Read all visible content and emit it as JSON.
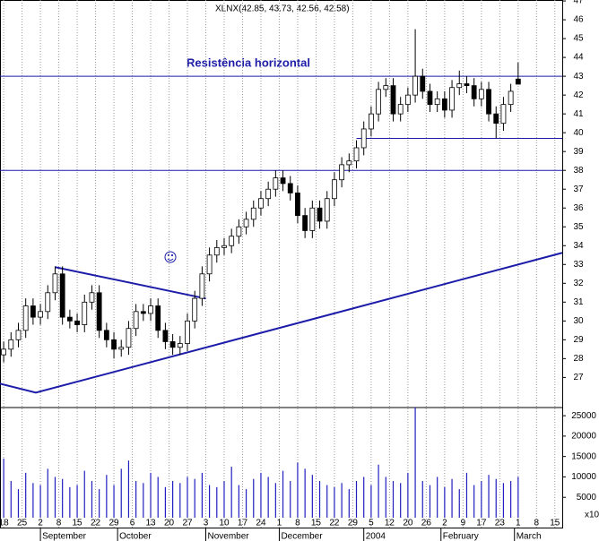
{
  "chart_data": {
    "type": "candlestick",
    "title": "XLNX(42.85, 43.73, 42.56, 42.58)",
    "annotation": "Resistência horizontal",
    "color_up": "#ffffff",
    "color_down": "#000000",
    "volume_color": "#2020c0",
    "line_color": "#1c1ca8",
    "x": [
      0,
      2,
      4,
      6,
      8,
      10,
      12,
      14,
      16,
      18,
      20,
      22,
      24,
      26,
      28,
      30,
      32,
      34,
      36,
      38,
      40,
      42,
      44,
      46,
      48,
      50,
      52,
      54,
      56,
      58,
      60,
      62,
      64,
      66,
      68,
      70,
      72,
      74,
      76,
      78,
      80,
      82,
      84,
      86,
      88,
      90,
      92,
      94,
      96,
      98,
      100,
      102,
      104,
      106,
      108,
      110,
      112,
      114,
      116,
      118,
      120,
      122,
      124,
      126,
      128,
      130,
      132,
      134,
      136,
      138,
      140
    ],
    "open": [
      28.2,
      28.5,
      29.0,
      29.5,
      30.8,
      30.2,
      30.5,
      31.5,
      32.5,
      30.2,
      30.0,
      29.8,
      31.0,
      31.5,
      29.5,
      29.0,
      28.5,
      28.6,
      29.6,
      30.5,
      30.4,
      30.8,
      29.5,
      28.9,
      28.6,
      28.8,
      30.0,
      31.2,
      32.5,
      33.5,
      33.9,
      34.0,
      34.5,
      35.0,
      35.4,
      36.0,
      36.5,
      37.0,
      37.6,
      37.3,
      36.8,
      35.6,
      34.8,
      36.0,
      35.3,
      36.5,
      37.5,
      38.3,
      38.5,
      39.2,
      40.2,
      41.0,
      42.3,
      42.5,
      41.0,
      41.5,
      42.0,
      43.0,
      42.2,
      41.5,
      41.8,
      41.2,
      42.4,
      42.6,
      42.5,
      41.8,
      42.3,
      41.0,
      40.5,
      41.5,
      42.85
    ],
    "high": [
      28.9,
      29.4,
      29.9,
      31.2,
      31.2,
      30.9,
      31.9,
      32.9,
      32.9,
      30.6,
      30.4,
      31.4,
      31.9,
      31.9,
      29.9,
      29.4,
      29.0,
      30.0,
      30.9,
      30.9,
      31.2,
      31.2,
      29.9,
      29.3,
      29.2,
      30.4,
      31.6,
      32.9,
      33.9,
      34.3,
      34.4,
      34.9,
      35.4,
      35.8,
      36.4,
      36.9,
      37.4,
      38.0,
      38.0,
      37.7,
      37.2,
      36.0,
      36.4,
      36.4,
      36.9,
      37.9,
      38.7,
      38.9,
      39.6,
      40.6,
      41.4,
      42.7,
      42.9,
      42.9,
      41.9,
      42.4,
      45.5,
      43.4,
      42.6,
      42.2,
      42.2,
      42.8,
      43.3,
      43.0,
      42.9,
      42.7,
      42.7,
      41.4,
      41.9,
      42.6,
      43.73
    ],
    "low": [
      27.8,
      28.1,
      28.6,
      29.1,
      29.8,
      29.8,
      30.1,
      31.1,
      29.8,
      29.6,
      29.4,
      29.4,
      30.6,
      29.1,
      28.6,
      28.0,
      28.1,
      28.2,
      29.2,
      30.0,
      30.0,
      29.1,
      28.5,
      28.2,
      28.2,
      28.4,
      29.6,
      30.8,
      32.1,
      33.1,
      33.5,
      33.6,
      34.1,
      34.6,
      35.0,
      35.6,
      36.1,
      36.6,
      36.9,
      36.4,
      35.2,
      34.4,
      34.4,
      34.9,
      34.9,
      36.1,
      37.1,
      37.9,
      38.1,
      38.8,
      39.8,
      40.6,
      41.9,
      40.6,
      40.6,
      41.1,
      41.6,
      41.8,
      41.1,
      41.1,
      40.8,
      40.8,
      42.0,
      42.1,
      41.4,
      41.4,
      40.6,
      39.7,
      40.1,
      41.1,
      42.56
    ],
    "close": [
      28.5,
      29.0,
      29.5,
      30.8,
      30.2,
      30.5,
      31.5,
      32.5,
      30.2,
      30.0,
      29.8,
      31.0,
      31.5,
      29.5,
      29.0,
      28.5,
      28.6,
      29.6,
      30.5,
      30.4,
      30.8,
      29.5,
      28.9,
      28.6,
      28.8,
      30.0,
      31.2,
      32.5,
      33.5,
      33.9,
      34.0,
      34.5,
      35.0,
      35.4,
      36.0,
      36.5,
      37.0,
      37.6,
      37.3,
      36.8,
      35.6,
      34.8,
      36.0,
      35.3,
      36.5,
      37.5,
      38.3,
      38.5,
      39.2,
      40.2,
      41.0,
      42.3,
      42.5,
      41.0,
      41.5,
      42.0,
      43.0,
      42.2,
      41.5,
      41.8,
      41.2,
      42.4,
      42.6,
      42.5,
      41.8,
      42.3,
      41.0,
      40.5,
      41.5,
      42.2,
      42.58
    ],
    "volume": [
      14500,
      9000,
      7000,
      11000,
      8500,
      8000,
      12000,
      10000,
      9500,
      7500,
      8000,
      11500,
      9000,
      7000,
      10500,
      8000,
      12000,
      14000,
      9000,
      8500,
      11000,
      10000,
      7500,
      9000,
      8500,
      10000,
      9500,
      11000,
      8000,
      7500,
      9000,
      12500,
      8000,
      7000,
      9500,
      11000,
      10000,
      8500,
      11500,
      9000,
      13500,
      12000,
      10500,
      9000,
      8000,
      7500,
      8500,
      7000,
      9000,
      10000,
      8000,
      13000,
      10000,
      9000,
      8500,
      11000,
      27000,
      9000,
      8000,
      10000,
      7500,
      9500,
      7000,
      11000,
      8000,
      9000,
      10500,
      9500,
      8500,
      9000,
      10000
    ],
    "xlim": [
      -1,
      152
    ],
    "xticks": [
      {
        "value": 0,
        "label": "18"
      },
      {
        "value": 5,
        "label": "25"
      },
      {
        "value": 10,
        "label": "2"
      },
      {
        "value": 15,
        "label": "8"
      },
      {
        "value": 20,
        "label": "15"
      },
      {
        "value": 25,
        "label": "22"
      },
      {
        "value": 30,
        "label": "29"
      },
      {
        "value": 35,
        "label": "6"
      },
      {
        "value": 40,
        "label": "13"
      },
      {
        "value": 45,
        "label": "20"
      },
      {
        "value": 50,
        "label": "27"
      },
      {
        "value": 55,
        "label": "3"
      },
      {
        "value": 60,
        "label": "10"
      },
      {
        "value": 65,
        "label": "17"
      },
      {
        "value": 70,
        "label": "24"
      },
      {
        "value": 75,
        "label": "1"
      },
      {
        "value": 80,
        "label": "8"
      },
      {
        "value": 85,
        "label": "15"
      },
      {
        "value": 90,
        "label": "22"
      },
      {
        "value": 95,
        "label": "29"
      },
      {
        "value": 100,
        "label": "5"
      },
      {
        "value": 105,
        "label": "12"
      },
      {
        "value": 110,
        "label": "20"
      },
      {
        "value": 115,
        "label": "26"
      },
      {
        "value": 120,
        "label": "2"
      },
      {
        "value": 125,
        "label": "9"
      },
      {
        "value": 130,
        "label": "17"
      },
      {
        "value": 135,
        "label": "23"
      },
      {
        "value": 140,
        "label": "1"
      },
      {
        "value": 145,
        "label": "8"
      },
      {
        "value": 150,
        "label": "15"
      }
    ],
    "months": [
      {
        "value": 10,
        "label": "September"
      },
      {
        "value": 31,
        "label": "October"
      },
      {
        "value": 55,
        "label": "November"
      },
      {
        "value": 75,
        "label": "December"
      },
      {
        "value": 98,
        "label": "2004"
      },
      {
        "value": 119,
        "label": "February"
      },
      {
        "value": 139,
        "label": "March"
      }
    ],
    "ylim": [
      25.4,
      47.05
    ],
    "yticks": [
      27,
      28,
      29,
      30,
      31,
      32,
      33,
      34,
      35,
      36,
      37,
      38,
      39,
      40,
      41,
      42,
      43,
      44,
      45,
      46,
      47
    ],
    "vlim": [
      0,
      27000
    ],
    "vticks": [
      5000,
      10000,
      15000,
      20000,
      25000
    ],
    "vunit": "x10",
    "lines": [
      {
        "x": [
          -1,
          152
        ],
        "y": [
          43,
          43
        ]
      },
      {
        "x": [
          -1,
          152
        ],
        "y": [
          38,
          38
        ]
      },
      {
        "x": [
          96,
          152
        ],
        "y": [
          39.7,
          39.7
        ]
      },
      {
        "x": [
          -1,
          8.75,
          152
        ],
        "y": [
          26.67,
          26.19,
          33.62
        ]
      },
      {
        "x": [
          14,
          55
        ],
        "y": [
          32.86,
          31.19
        ]
      }
    ]
  }
}
